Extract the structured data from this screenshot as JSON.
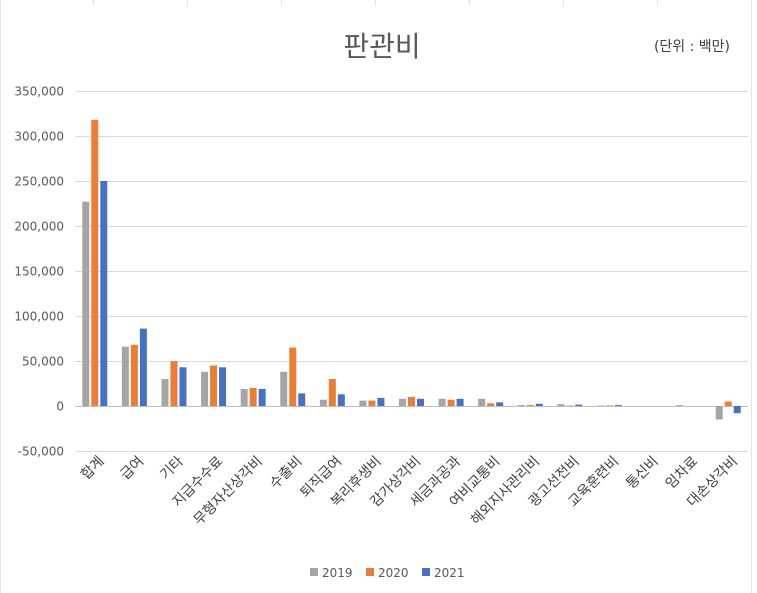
{
  "chart_data": {
    "type": "bar",
    "title": "판관비",
    "unit_note": "(단위 : 백만)",
    "categories": [
      "합계",
      "급여",
      "기타",
      "지급수수료",
      "무형자산상각비",
      "수출비",
      "퇴직급여",
      "복리후생비",
      "감가상각비",
      "세금과공과",
      "여비교통비",
      "해외지사관리비",
      "광고선전비",
      "교육훈련비",
      "통신비",
      "임차료",
      "대손상각비"
    ],
    "series": [
      {
        "name": "2019",
        "color": "#a5a5a5",
        "values": [
          227000,
          66000,
          30000,
          38000,
          19000,
          38000,
          7000,
          6000,
          8000,
          8000,
          8000,
          1000,
          2000,
          500,
          0,
          1000,
          -15000
        ]
      },
      {
        "name": "2020",
        "color": "#ed7d31",
        "values": [
          318000,
          68000,
          50000,
          45000,
          20000,
          65000,
          30000,
          6000,
          10000,
          7000,
          3000,
          1000,
          500,
          500,
          0,
          0,
          5000
        ]
      },
      {
        "name": "2021",
        "color": "#4472c4",
        "values": [
          250000,
          86000,
          43000,
          43000,
          19000,
          14000,
          13000,
          9000,
          8000,
          8000,
          4000,
          2500,
          1500,
          1000,
          0,
          0,
          -8000
        ]
      }
    ],
    "ylim": [
      -50000,
      350000
    ],
    "yticks": [
      "-50,000",
      "0",
      "50,000",
      "100,000",
      "150,000",
      "200,000",
      "250,000",
      "300,000",
      "350,000"
    ],
    "ytick_values": [
      -50000,
      0,
      50000,
      100000,
      150000,
      200000,
      250000,
      300000,
      350000
    ],
    "grid": true,
    "legend_position": "bottom"
  }
}
